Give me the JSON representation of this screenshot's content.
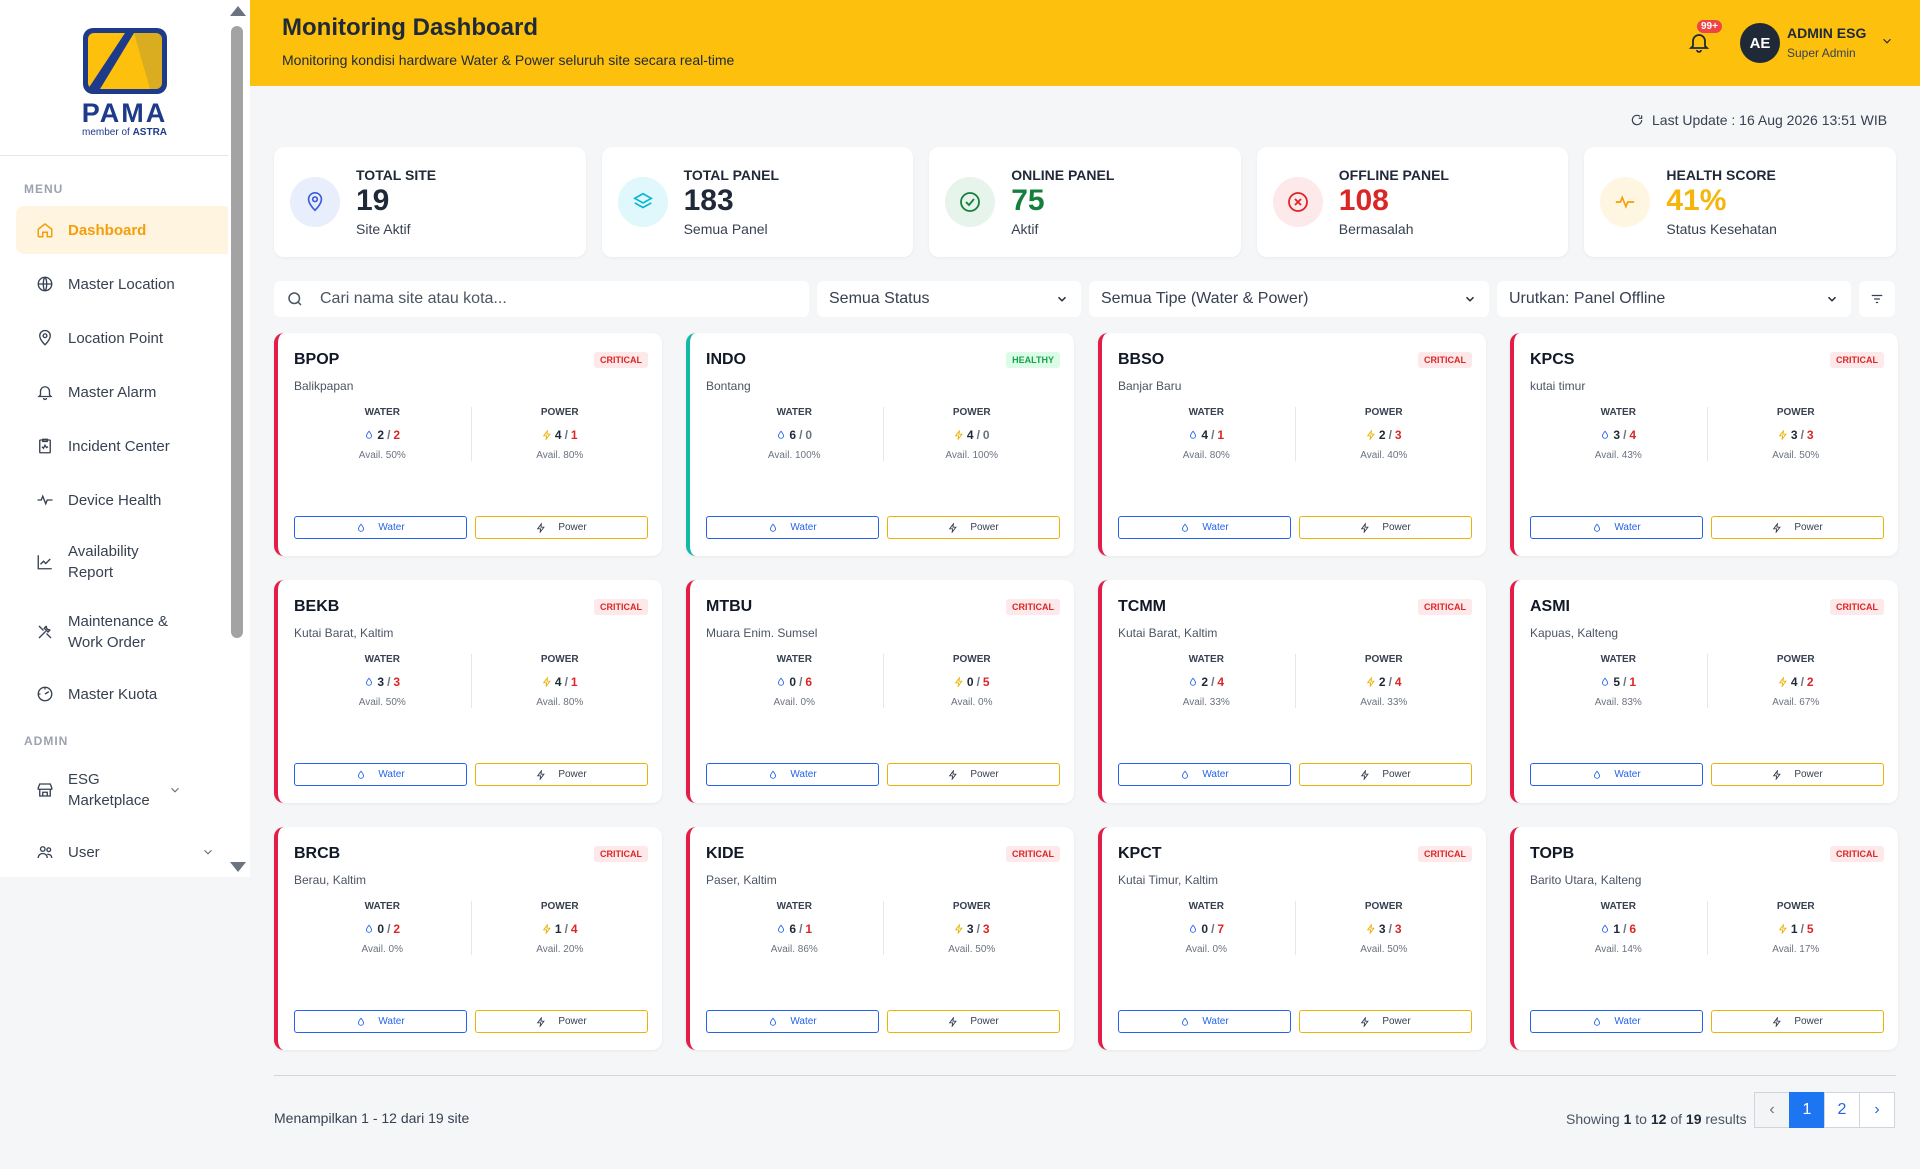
{
  "brand": {
    "name": "PAMA",
    "sub_prefix": "member of",
    "sub_brand": "ASTRA"
  },
  "sidebar": {
    "menu_title": "MENU",
    "items": [
      {
        "label": "Dashboard",
        "icon": "home-icon"
      },
      {
        "label": "Master Location",
        "icon": "globe-icon"
      },
      {
        "label": "Location Point",
        "icon": "map-pin-icon"
      },
      {
        "label": "Master Alarm",
        "icon": "bell-icon"
      },
      {
        "label": "Incident Center",
        "icon": "clipboard-icon"
      },
      {
        "label": "Device Health",
        "icon": "pulse-icon"
      },
      {
        "label": "Availability Report",
        "icon": "chart-line-icon"
      },
      {
        "label": "Maintenance & Work Order",
        "icon": "tools-icon"
      },
      {
        "label": "Master Kuota",
        "icon": "gauge-icon"
      }
    ],
    "admin_title": "ADMIN",
    "admin_items": [
      {
        "label": "ESG Marketplace",
        "icon": "store-icon"
      },
      {
        "label": "User",
        "icon": "users-icon"
      }
    ]
  },
  "header": {
    "title": "Monitoring Dashboard",
    "subtitle": "Monitoring kondisi hardware Water & Power seluruh site secara real-time",
    "notif_badge": "99+",
    "avatar": "AE",
    "user_name": "ADMIN ESG",
    "user_role": "Super Admin"
  },
  "last_update": "Last Update : 16 Aug 2026 13:51 WIB",
  "stats": [
    {
      "label": "TOTAL SITE",
      "value": "19",
      "sub": "Site Aktif",
      "color": "#1f2937"
    },
    {
      "label": "TOTAL PANEL",
      "value": "183",
      "sub": "Semua Panel",
      "color": "#1f2937"
    },
    {
      "label": "ONLINE PANEL",
      "value": "75",
      "sub": "Aktif",
      "color": "#15803d"
    },
    {
      "label": "OFFLINE PANEL",
      "value": "108",
      "sub": "Bermasalah",
      "color": "#dc2626"
    },
    {
      "label": "HEALTH SCORE",
      "value": "41%",
      "sub": "Status Kesehatan",
      "color": "#f5b50b"
    }
  ],
  "filters": {
    "search_placeholder": "Cari nama site atau kota...",
    "status": "Semua Status",
    "type": "Semua Tipe (Water & Power)",
    "sort": "Urutkan: Panel Offline"
  },
  "labels": {
    "water": "WATER",
    "power": "POWER",
    "water_btn": "Water",
    "power_btn": "Power"
  },
  "sites": [
    {
      "code": "BPOP",
      "loc": "Balikpapan",
      "status": "CRITICAL",
      "w_on": "2",
      "w_off": "2",
      "w_avail": "Avail. 50%",
      "p_on": "4",
      "p_off": "1",
      "p_avail": "Avail. 80%"
    },
    {
      "code": "INDO",
      "loc": "Bontang",
      "status": "HEALTHY",
      "w_on": "6",
      "w_off": "0",
      "w_avail": "Avail. 100%",
      "p_on": "4",
      "p_off": "0",
      "p_avail": "Avail. 100%"
    },
    {
      "code": "BBSO",
      "loc": "Banjar Baru",
      "status": "CRITICAL",
      "w_on": "4",
      "w_off": "1",
      "w_avail": "Avail. 80%",
      "p_on": "2",
      "p_off": "3",
      "p_avail": "Avail. 40%"
    },
    {
      "code": "KPCS",
      "loc": "kutai timur",
      "status": "CRITICAL",
      "w_on": "3",
      "w_off": "4",
      "w_avail": "Avail. 43%",
      "p_on": "3",
      "p_off": "3",
      "p_avail": "Avail. 50%"
    },
    {
      "code": "BEKB",
      "loc": "Kutai Barat, Kaltim",
      "status": "CRITICAL",
      "w_on": "3",
      "w_off": "3",
      "w_avail": "Avail. 50%",
      "p_on": "4",
      "p_off": "1",
      "p_avail": "Avail. 80%"
    },
    {
      "code": "MTBU",
      "loc": "Muara Enim. Sumsel",
      "status": "CRITICAL",
      "w_on": "0",
      "w_off": "6",
      "w_avail": "Avail. 0%",
      "p_on": "0",
      "p_off": "5",
      "p_avail": "Avail. 0%"
    },
    {
      "code": "TCMM",
      "loc": "Kutai Barat, Kaltim",
      "status": "CRITICAL",
      "w_on": "2",
      "w_off": "4",
      "w_avail": "Avail. 33%",
      "p_on": "2",
      "p_off": "4",
      "p_avail": "Avail. 33%"
    },
    {
      "code": "ASMI",
      "loc": "Kapuas, Kalteng",
      "status": "CRITICAL",
      "w_on": "5",
      "w_off": "1",
      "w_avail": "Avail. 83%",
      "p_on": "4",
      "p_off": "2",
      "p_avail": "Avail. 67%"
    },
    {
      "code": "BRCB",
      "loc": "Berau, Kaltim",
      "status": "CRITICAL",
      "w_on": "0",
      "w_off": "2",
      "w_avail": "Avail. 0%",
      "p_on": "1",
      "p_off": "4",
      "p_avail": "Avail. 20%"
    },
    {
      "code": "KIDE",
      "loc": "Paser, Kaltim",
      "status": "CRITICAL",
      "w_on": "6",
      "w_off": "1",
      "w_avail": "Avail. 86%",
      "p_on": "3",
      "p_off": "3",
      "p_avail": "Avail. 50%"
    },
    {
      "code": "KPCT",
      "loc": "Kutai Timur, Kaltim",
      "status": "CRITICAL",
      "w_on": "0",
      "w_off": "7",
      "w_avail": "Avail. 0%",
      "p_on": "3",
      "p_off": "3",
      "p_avail": "Avail. 50%"
    },
    {
      "code": "TOPB",
      "loc": "Barito Utara, Kalteng",
      "status": "CRITICAL",
      "w_on": "1",
      "w_off": "6",
      "w_avail": "Avail. 14%",
      "p_on": "1",
      "p_off": "5",
      "p_avail": "Avail. 17%"
    }
  ],
  "footer": {
    "left": "Menampilkan 1 - 12 dari 19 site",
    "showing": "Showing",
    "from": "1",
    "to_word": "to",
    "to": "12",
    "of_word": "of",
    "total": "19",
    "results": "results",
    "pages": [
      "1",
      "2"
    ],
    "prev": "‹",
    "next": "›"
  },
  "colors": {
    "accent": "#fcc00d",
    "critical": "#e11d48",
    "healthy": "#14b8a6",
    "water": "#2563eb",
    "power": "#eab308",
    "pager_active": "#1d75f2"
  }
}
